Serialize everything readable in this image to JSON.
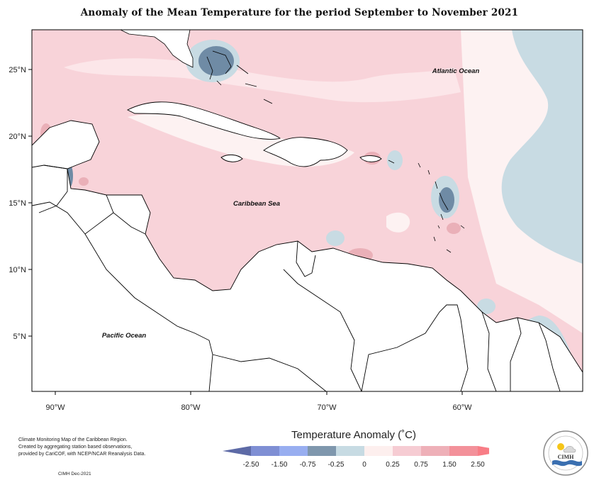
{
  "title": "Anomaly of the Mean Temperature for the period September to November 2021",
  "axes": {
    "x_ticks": [
      "90°W",
      "80°W",
      "70°W",
      "60°W"
    ],
    "y_ticks": [
      "25°N",
      "20°N",
      "15°N",
      "10°N",
      "5°N"
    ]
  },
  "labels": {
    "atlantic": "Atlantic Ocean",
    "caribbean": "Caribbean Sea",
    "pacific": "Pacific Ocean"
  },
  "legend": {
    "title": "Temperature Anomaly (˚C)",
    "ticks": [
      "-2.50",
      "-1.50",
      "-0.75",
      "-0.25",
      "0",
      "0.25",
      "0.75",
      "1.50",
      "2.50"
    ],
    "colors": [
      "#5d6aa6",
      "#7f8fd4",
      "#98aef0",
      "#7f97ad",
      "#c7dbe3",
      "#fdefee",
      "#f6ccd3",
      "#eeb0b8",
      "#f3919a",
      "#f87d86"
    ]
  },
  "credit": {
    "line1": "Climate Monitoring Map of the Caribbean Region.",
    "line2": "Created by aggregating station based observations,",
    "line3": "provided by CariCOF, with NCEP/NCAR Reanalysis Data.",
    "date": "CIMH Dec-2021"
  },
  "logo": {
    "text": "CIMH"
  },
  "colors": {
    "pink": "#f8d3d9",
    "light_pink": "#fce6e9",
    "very_light_pink": "#fdf2f2",
    "light_blue": "#c8dbe3",
    "dark_blue": "#6f8ba5",
    "rose": "#eab0b8"
  }
}
